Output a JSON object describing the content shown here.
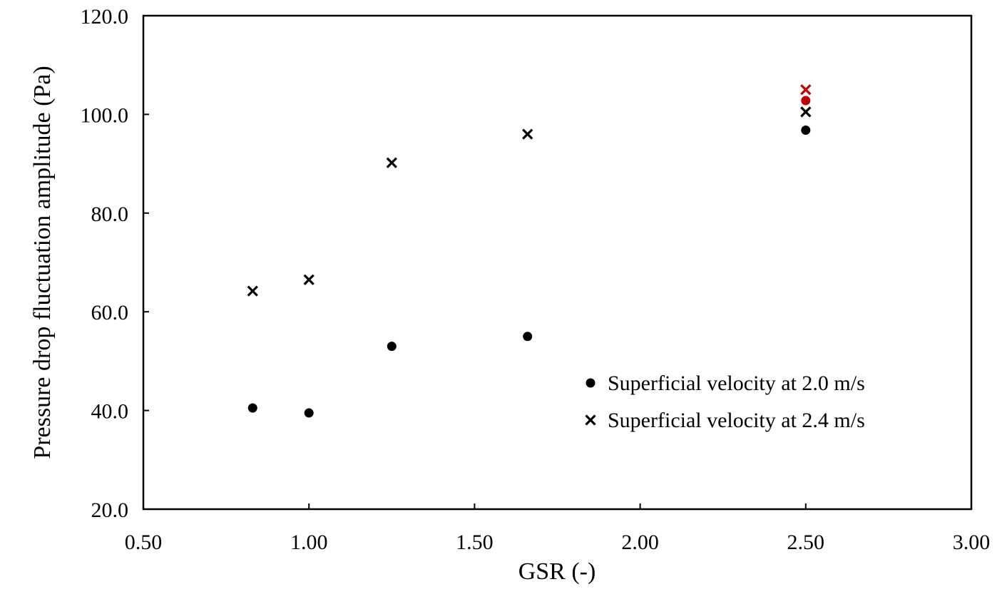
{
  "chart_data": {
    "type": "scatter",
    "title": "",
    "xlabel": "GSR (-)",
    "ylabel": "Pressure drop fluctuation amplitude (Pa)",
    "xlim": [
      0.5,
      3.0
    ],
    "ylim": [
      20.0,
      120.0
    ],
    "x_ticks": [
      0.5,
      1.0,
      1.5,
      2.0,
      2.5,
      3.0
    ],
    "x_tick_labels": [
      "0.50",
      "1.00",
      "1.50",
      "2.00",
      "2.50",
      "3.00"
    ],
    "y_ticks": [
      20.0,
      40.0,
      60.0,
      80.0,
      100.0,
      120.0
    ],
    "y_tick_labels": [
      "20.0",
      "40.0",
      "60.0",
      "80.0",
      "100.0",
      "120.0"
    ],
    "grid": false,
    "legend_position": "lower-right",
    "series": [
      {
        "name": "Superficial velocity at 2.0 m/s",
        "marker": "circle",
        "color": "#000000",
        "points": [
          {
            "x": 0.83,
            "y": 40.5
          },
          {
            "x": 1.0,
            "y": 39.5
          },
          {
            "x": 1.25,
            "y": 53.0
          },
          {
            "x": 1.66,
            "y": 55.0
          },
          {
            "x": 2.5,
            "y": 96.8
          },
          {
            "x": 2.5,
            "y": 102.8,
            "color": "#c00000"
          }
        ]
      },
      {
        "name": "Superficial velocity at 2.4 m/s",
        "marker": "cross",
        "color": "#000000",
        "points": [
          {
            "x": 0.83,
            "y": 64.2
          },
          {
            "x": 1.0,
            "y": 66.5
          },
          {
            "x": 1.25,
            "y": 90.2
          },
          {
            "x": 1.66,
            "y": 96.0
          },
          {
            "x": 2.5,
            "y": 100.5
          },
          {
            "x": 2.5,
            "y": 105.0,
            "color": "#c00000"
          }
        ]
      }
    ]
  }
}
